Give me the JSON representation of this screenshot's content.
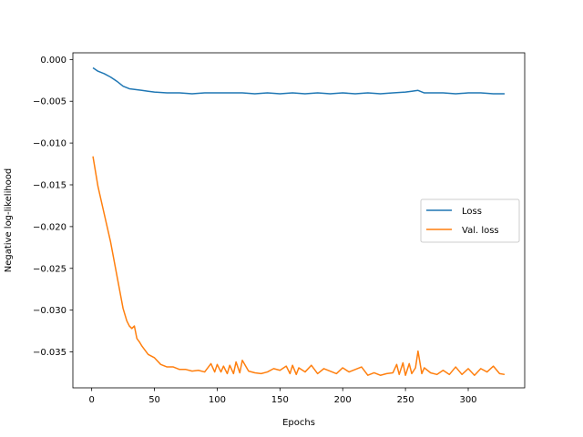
{
  "chart_data": {
    "type": "line",
    "title": "",
    "xlabel": "Epochs",
    "ylabel": "Negative log-likelihood",
    "xlim": [
      -15,
      345
    ],
    "ylim": [
      -0.0393,
      0.0008
    ],
    "xticks": [
      0,
      50,
      100,
      150,
      200,
      250,
      300
    ],
    "yticks": [
      0.0,
      -0.005,
      -0.01,
      -0.015,
      -0.02,
      -0.025,
      -0.03,
      -0.035
    ],
    "ytick_labels": [
      "0.000",
      "−0.005",
      "−0.010",
      "−0.015",
      "−0.020",
      "−0.025",
      "−0.030",
      "−0.035"
    ],
    "grid": false,
    "legend_position": "center-right",
    "series": [
      {
        "name": "Loss",
        "color": "#1f77b4",
        "x": [
          1,
          5,
          10,
          15,
          20,
          25,
          30,
          35,
          40,
          45,
          50,
          60,
          70,
          80,
          90,
          100,
          110,
          120,
          130,
          140,
          150,
          160,
          170,
          180,
          190,
          200,
          210,
          220,
          230,
          240,
          250,
          255,
          260,
          265,
          270,
          280,
          290,
          300,
          310,
          320,
          329
        ],
        "values": [
          -0.001,
          -0.0014,
          -0.0017,
          -0.0021,
          -0.0026,
          -0.0032,
          -0.0035,
          -0.0036,
          -0.0037,
          -0.0038,
          -0.0039,
          -0.004,
          -0.004,
          -0.0041,
          -0.004,
          -0.004,
          -0.004,
          -0.004,
          -0.0041,
          -0.004,
          -0.0041,
          -0.004,
          -0.0041,
          -0.004,
          -0.0041,
          -0.004,
          -0.0041,
          -0.004,
          -0.0041,
          -0.004,
          -0.0039,
          -0.0038,
          -0.0037,
          -0.004,
          -0.004,
          -0.004,
          -0.0041,
          -0.004,
          -0.004,
          -0.0041,
          -0.0041
        ]
      },
      {
        "name": "Val. loss",
        "color": "#ff7f0e",
        "x": [
          1,
          5,
          10,
          15,
          20,
          25,
          28,
          30,
          32,
          34,
          36,
          38,
          40,
          45,
          50,
          55,
          60,
          65,
          70,
          75,
          80,
          85,
          90,
          95,
          98,
          100,
          103,
          105,
          108,
          110,
          113,
          115,
          118,
          120,
          125,
          130,
          135,
          140,
          145,
          150,
          155,
          158,
          160,
          163,
          165,
          170,
          175,
          180,
          185,
          190,
          195,
          200,
          205,
          210,
          215,
          220,
          225,
          230,
          235,
          240,
          243,
          245,
          248,
          250,
          253,
          255,
          258,
          260,
          263,
          265,
          270,
          275,
          280,
          285,
          290,
          295,
          300,
          305,
          310,
          315,
          320,
          325,
          329
        ],
        "values": [
          -0.0116,
          -0.0152,
          -0.0185,
          -0.0218,
          -0.0258,
          -0.0298,
          -0.0313,
          -0.0319,
          -0.0322,
          -0.0319,
          -0.0334,
          -0.0338,
          -0.0343,
          -0.0353,
          -0.0357,
          -0.0365,
          -0.0368,
          -0.0368,
          -0.0371,
          -0.0371,
          -0.0373,
          -0.0372,
          -0.0374,
          -0.0364,
          -0.0374,
          -0.0365,
          -0.0374,
          -0.0367,
          -0.0376,
          -0.0366,
          -0.0376,
          -0.0362,
          -0.0375,
          -0.036,
          -0.0373,
          -0.0375,
          -0.0376,
          -0.0374,
          -0.037,
          -0.0372,
          -0.0367,
          -0.0376,
          -0.0366,
          -0.0377,
          -0.0369,
          -0.0374,
          -0.0366,
          -0.0376,
          -0.037,
          -0.0373,
          -0.0376,
          -0.0369,
          -0.0374,
          -0.0371,
          -0.0368,
          -0.0378,
          -0.0375,
          -0.0378,
          -0.0376,
          -0.0375,
          -0.0365,
          -0.0377,
          -0.0363,
          -0.0378,
          -0.0364,
          -0.0376,
          -0.0369,
          -0.0349,
          -0.0376,
          -0.0369,
          -0.0375,
          -0.0377,
          -0.0372,
          -0.0377,
          -0.0368,
          -0.0377,
          -0.037,
          -0.0378,
          -0.037,
          -0.0374,
          -0.0367,
          -0.0376,
          -0.0377
        ]
      }
    ]
  }
}
